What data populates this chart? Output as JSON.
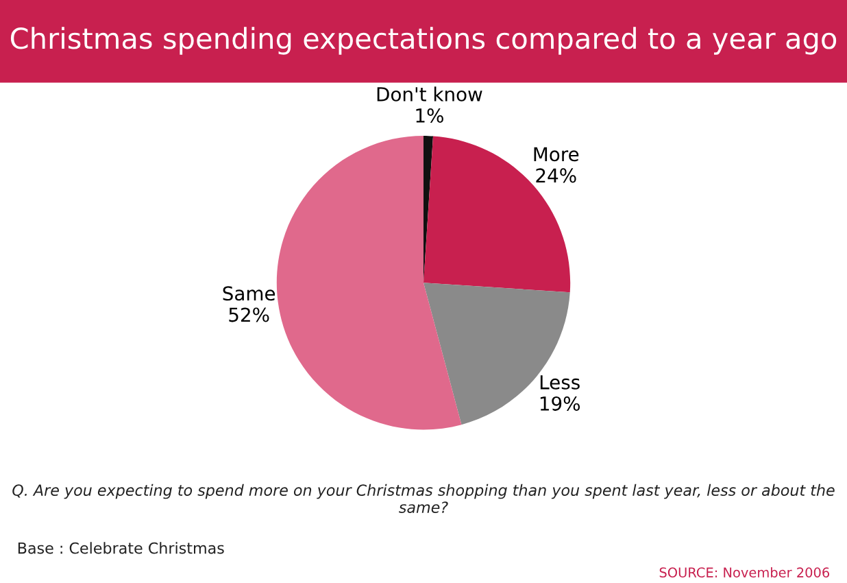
{
  "chart_data": {
    "type": "pie",
    "title": "Christmas spending expectations compared to a year ago",
    "categories": [
      "Don't know",
      "More",
      "Less",
      "Same"
    ],
    "values": [
      1,
      24,
      19,
      52
    ],
    "value_labels": [
      "1%",
      "24%",
      "19%",
      "52%"
    ],
    "colors": [
      "#111111",
      "#c8204f",
      "#8a8a8a",
      "#e0698c"
    ],
    "legend": false,
    "annotations": [
      "Q. Are you expecting to spend more on your Christmas shopping than you spent last year, less or about the same?",
      "Base : Celebrate Christmas",
      "SOURCE: November 2006"
    ]
  }
}
